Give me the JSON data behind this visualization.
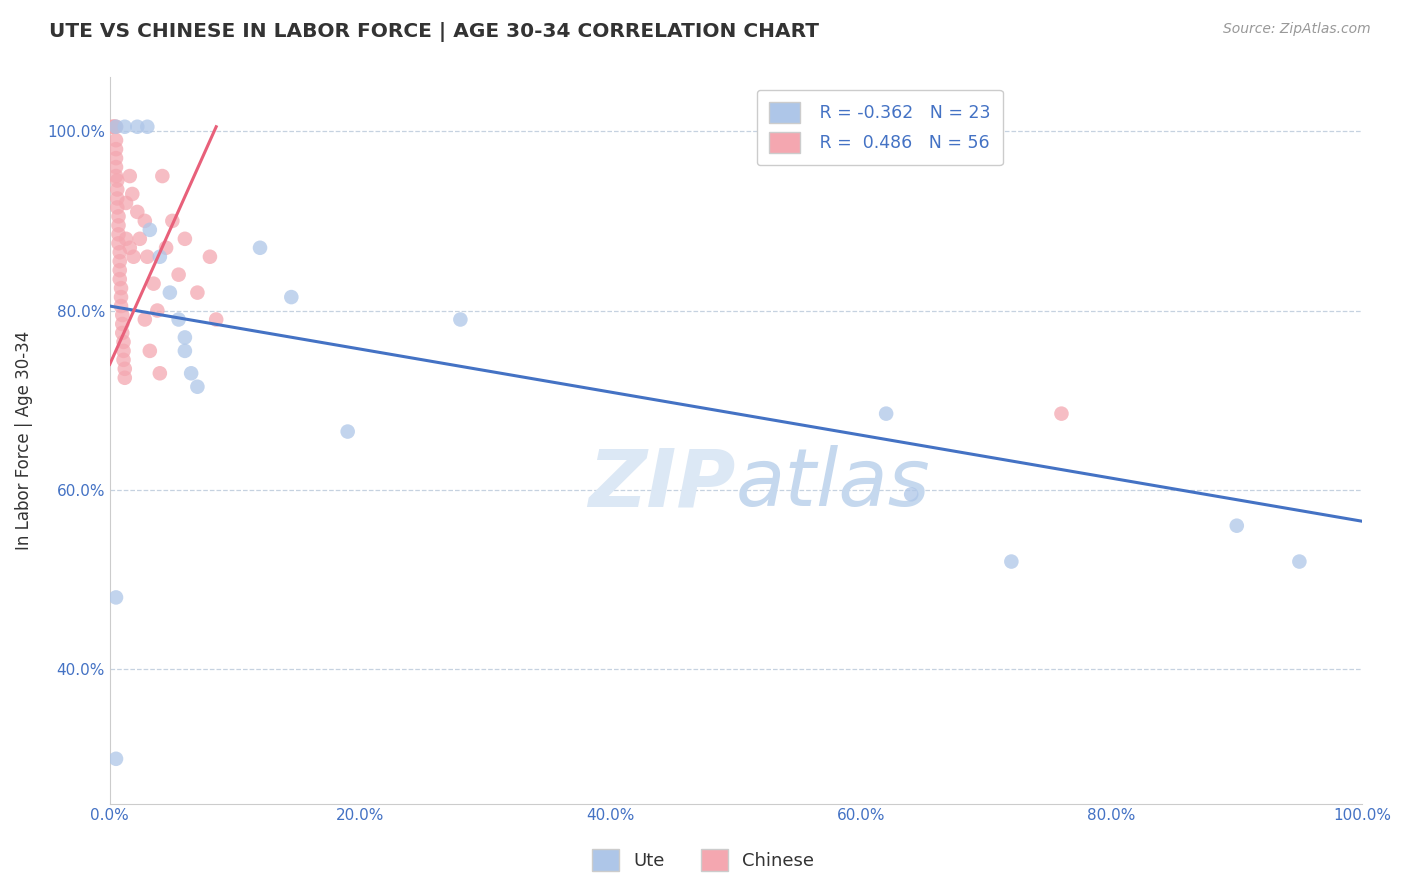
{
  "title": "UTE VS CHINESE IN LABOR FORCE | AGE 30-34 CORRELATION CHART",
  "source_text": "Source: ZipAtlas.com",
  "ylabel": "In Labor Force | Age 30-34",
  "xlim": [
    0.0,
    1.0
  ],
  "ylim": [
    0.25,
    1.06
  ],
  "xtick_labels": [
    "0.0%",
    "20.0%",
    "40.0%",
    "60.0%",
    "80.0%",
    "100.0%"
  ],
  "xtick_values": [
    0.0,
    0.2,
    0.4,
    0.6,
    0.8,
    1.0
  ],
  "ytick_labels": [
    "40.0%",
    "60.0%",
    "80.0%",
    "100.0%"
  ],
  "ytick_values": [
    0.4,
    0.6,
    0.8,
    1.0
  ],
  "legend_labels": [
    "Ute",
    "Chinese"
  ],
  "ute_color": "#aec6e8",
  "chinese_color": "#f4a7b0",
  "ute_line_color": "#4472c4",
  "chinese_line_color": "#e8607a",
  "R_ute": -0.362,
  "N_ute": 23,
  "R_chinese": 0.486,
  "N_chinese": 56,
  "ute_line_x0": 0.0,
  "ute_line_y0": 0.805,
  "ute_line_x1": 1.0,
  "ute_line_y1": 0.565,
  "chinese_line_x0": 0.0,
  "chinese_line_y0": 0.74,
  "chinese_line_x1": 0.085,
  "chinese_line_y1": 1.005,
  "ute_scatter": [
    [
      0.005,
      1.005
    ],
    [
      0.012,
      1.005
    ],
    [
      0.022,
      1.005
    ],
    [
      0.03,
      1.005
    ],
    [
      0.032,
      0.89
    ],
    [
      0.04,
      0.86
    ],
    [
      0.048,
      0.82
    ],
    [
      0.055,
      0.79
    ],
    [
      0.06,
      0.77
    ],
    [
      0.06,
      0.755
    ],
    [
      0.065,
      0.73
    ],
    [
      0.07,
      0.715
    ],
    [
      0.12,
      0.87
    ],
    [
      0.145,
      0.815
    ],
    [
      0.005,
      0.48
    ],
    [
      0.19,
      0.665
    ],
    [
      0.28,
      0.79
    ],
    [
      0.62,
      0.685
    ],
    [
      0.64,
      0.595
    ],
    [
      0.72,
      0.52
    ],
    [
      0.9,
      0.56
    ],
    [
      0.95,
      0.52
    ],
    [
      0.005,
      0.3
    ]
  ],
  "chinese_scatter": [
    [
      0.002,
      1.005
    ],
    [
      0.003,
      1.005
    ],
    [
      0.004,
      1.005
    ],
    [
      0.005,
      1.005
    ],
    [
      0.005,
      0.99
    ],
    [
      0.005,
      0.98
    ],
    [
      0.005,
      0.97
    ],
    [
      0.005,
      0.96
    ],
    [
      0.005,
      0.95
    ],
    [
      0.006,
      0.945
    ],
    [
      0.006,
      0.935
    ],
    [
      0.006,
      0.925
    ],
    [
      0.006,
      0.915
    ],
    [
      0.007,
      0.905
    ],
    [
      0.007,
      0.895
    ],
    [
      0.007,
      0.885
    ],
    [
      0.007,
      0.875
    ],
    [
      0.008,
      0.865
    ],
    [
      0.008,
      0.855
    ],
    [
      0.008,
      0.845
    ],
    [
      0.008,
      0.835
    ],
    [
      0.009,
      0.825
    ],
    [
      0.009,
      0.815
    ],
    [
      0.009,
      0.805
    ],
    [
      0.01,
      0.795
    ],
    [
      0.01,
      0.785
    ],
    [
      0.01,
      0.775
    ],
    [
      0.011,
      0.765
    ],
    [
      0.011,
      0.755
    ],
    [
      0.011,
      0.745
    ],
    [
      0.012,
      0.735
    ],
    [
      0.012,
      0.725
    ],
    [
      0.013,
      0.92
    ],
    [
      0.013,
      0.88
    ],
    [
      0.016,
      0.95
    ],
    [
      0.016,
      0.87
    ],
    [
      0.018,
      0.93
    ],
    [
      0.019,
      0.86
    ],
    [
      0.022,
      0.91
    ],
    [
      0.024,
      0.88
    ],
    [
      0.028,
      0.9
    ],
    [
      0.03,
      0.86
    ],
    [
      0.035,
      0.83
    ],
    [
      0.038,
      0.8
    ],
    [
      0.042,
      0.95
    ],
    [
      0.045,
      0.87
    ],
    [
      0.05,
      0.9
    ],
    [
      0.055,
      0.84
    ],
    [
      0.06,
      0.88
    ],
    [
      0.07,
      0.82
    ],
    [
      0.08,
      0.86
    ],
    [
      0.085,
      0.79
    ],
    [
      0.028,
      0.79
    ],
    [
      0.032,
      0.755
    ],
    [
      0.04,
      0.73
    ],
    [
      0.76,
      0.685
    ]
  ]
}
